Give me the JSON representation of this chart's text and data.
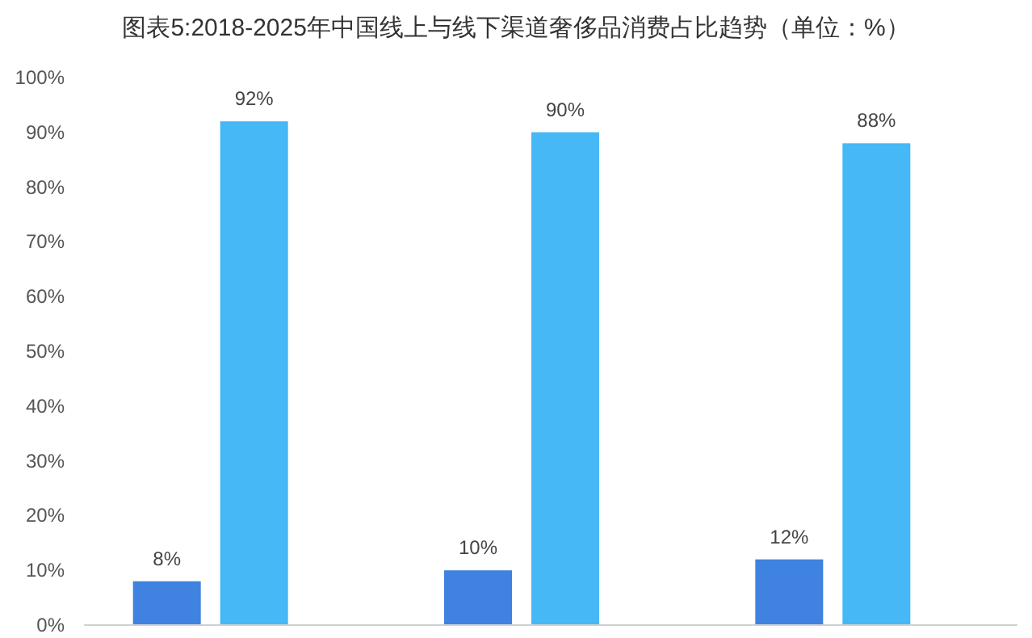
{
  "chart_data": {
    "type": "bar",
    "title": "图表5:2018-2025年中国线上与线下渠道奢侈品消费占比趋势（单位：%）",
    "categories": [
      null,
      null,
      null
    ],
    "series": [
      {
        "color": "#3f82e0",
        "values": [
          8,
          10,
          12
        ],
        "value_labels": [
          "8%",
          "10%",
          "12%"
        ]
      },
      {
        "color": "#45b8f5",
        "values": [
          92,
          90,
          88
        ],
        "value_labels": [
          "92%",
          "90%",
          "88%"
        ]
      }
    ],
    "ylim": [
      0,
      100
    ],
    "yticks": [
      {
        "value": 0,
        "label": "0%"
      },
      {
        "value": 10,
        "label": "10%"
      },
      {
        "value": 20,
        "label": "20%"
      },
      {
        "value": 30,
        "label": "30%"
      },
      {
        "value": 40,
        "label": "40%"
      },
      {
        "value": 50,
        "label": "50%"
      },
      {
        "value": 60,
        "label": "60%"
      },
      {
        "value": 70,
        "label": "70%"
      },
      {
        "value": 80,
        "label": "80%"
      },
      {
        "value": 90,
        "label": "90%"
      },
      {
        "value": 100,
        "label": "100%"
      }
    ],
    "grid": false
  }
}
